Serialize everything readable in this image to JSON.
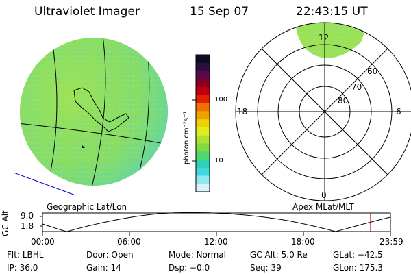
{
  "header": {
    "instrument": "Ultraviolet Imager",
    "date": "15 Sep 07",
    "time": "22:43:15 UT"
  },
  "colorbar": {
    "unit_label": "photon cm⁻²s⁻¹",
    "ticks": [
      "100",
      "10"
    ],
    "colors": [
      "#0b0b26",
      "#2a1040",
      "#5a0a4a",
      "#8a0020",
      "#c00010",
      "#e02000",
      "#f07000",
      "#f0a000",
      "#f0d000",
      "#e0ee20",
      "#b0e030",
      "#80dc40",
      "#50d870",
      "#30d0b0",
      "#40d8e0",
      "#90e8f0",
      "#d8f4f8"
    ]
  },
  "geo_panel": {
    "label": "Geographic Lat/Lon",
    "colors": {
      "fill": "#8ede64",
      "speckle": "#5fd0c8",
      "grid": "#000000",
      "coast": "#000000",
      "blue_line": "#0000cc"
    }
  },
  "polar_panel": {
    "label": "Apex MLat/MLT",
    "lat_labels": [
      "80",
      "70",
      "60"
    ],
    "mlt_labels": {
      "top": "12",
      "left": "18",
      "right": "6",
      "bottom": "0"
    },
    "colors": {
      "fill": "#a8e64e"
    }
  },
  "altitude_plot": {
    "ylabel": "GC Alt",
    "yticks": [
      "9.0",
      "1.8"
    ],
    "xticks": [
      "00:00",
      "06:00",
      "12:00",
      "18:00",
      "23:59"
    ],
    "marker_color": "#cc0000"
  },
  "info": {
    "row1": [
      {
        "label": "Flt:",
        "value": "LBHL"
      },
      {
        "label": "Door:",
        "value": "Open"
      },
      {
        "label": "Mode:",
        "value": "Normal"
      },
      {
        "label": "GC Alt:",
        "value": "5.0 Re"
      },
      {
        "label": "GLat:",
        "value": "−42.5"
      }
    ],
    "row2": [
      {
        "label": "IP:",
        "value": "36.0"
      },
      {
        "label": "Gain:",
        "value": "14"
      },
      {
        "label": "Dsp:",
        "value": "−0.0"
      },
      {
        "label": "Seq:",
        "value": "39"
      },
      {
        "label": "GLon:",
        "value": "175.3"
      }
    ]
  }
}
